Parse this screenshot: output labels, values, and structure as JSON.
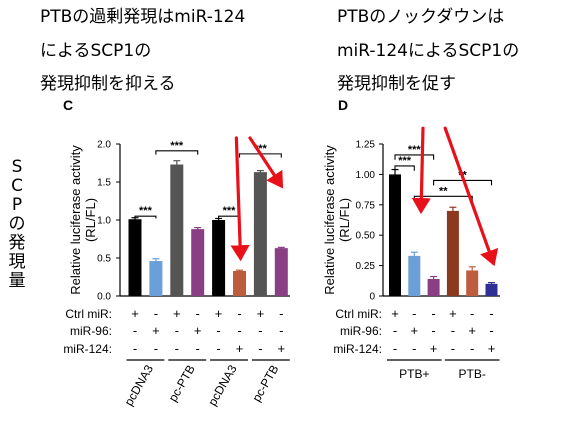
{
  "captions": {
    "left": [
      "PTBの過剰発現はmiR-124",
      "によるSCP1の",
      "発現抑制を抑える"
    ],
    "right": [
      "PTBのノックダウンは",
      "miR-124によるSCP1の",
      "発現抑制を促す"
    ],
    "side": "SCPの発現量"
  },
  "colors": {
    "black": "#000000",
    "blue": "#6a9fd8",
    "gray": "#555555",
    "purple": "#8a3f84",
    "brown": "#bd5d3e",
    "darkbrown": "#8b3a1f",
    "darkblue": "#2f2f95",
    "arrow": "#e8111a"
  },
  "chart_data": [
    {
      "panel": "C",
      "type": "bar",
      "ylabel": "Relative luciferase activity\n(RL/FL)",
      "ylim": [
        0,
        2.0
      ],
      "yticks": [
        "0.0",
        "0.5",
        "1.0",
        "1.5",
        "2.0"
      ],
      "row_labels": [
        "Ctrl miR:",
        "miR-96:",
        "miR-124:"
      ],
      "bars": [
        {
          "value": 1.01,
          "error": 0.02,
          "color": "black",
          "signs": [
            "+",
            "-",
            "-"
          ]
        },
        {
          "value": 0.46,
          "error": 0.03,
          "color": "blue",
          "signs": [
            "-",
            "+",
            "-"
          ]
        },
        {
          "value": 1.73,
          "error": 0.05,
          "color": "gray",
          "signs": [
            "+",
            "-",
            "-"
          ]
        },
        {
          "value": 0.88,
          "error": 0.02,
          "color": "purple",
          "signs": [
            "-",
            "+",
            "-"
          ]
        },
        {
          "value": 1.0,
          "error": 0.02,
          "color": "black",
          "signs": [
            "+",
            "-",
            "-"
          ]
        },
        {
          "value": 0.33,
          "error": 0.01,
          "color": "brown",
          "signs": [
            "-",
            "-",
            "+"
          ]
        },
        {
          "value": 1.63,
          "error": 0.02,
          "color": "gray",
          "signs": [
            "+",
            "-",
            "-"
          ]
        },
        {
          "value": 0.63,
          "error": 0.01,
          "color": "purple",
          "signs": [
            "-",
            "-",
            "+"
          ]
        }
      ],
      "groups": [
        {
          "label": "pcDNA3",
          "bars": [
            0,
            1
          ]
        },
        {
          "label": "pc-PTB",
          "bars": [
            2,
            3
          ]
        },
        {
          "label": "pcDNA3",
          "bars": [
            4,
            5
          ]
        },
        {
          "label": "pc-PTB",
          "bars": [
            6,
            7
          ]
        }
      ],
      "significance": [
        {
          "from": 0,
          "to": 1,
          "y": 1.05,
          "drop": 0.03,
          "label": "***"
        },
        {
          "from": 1,
          "to": 3,
          "y": 1.91,
          "drop": 0.05,
          "label": "***"
        },
        {
          "from": 4,
          "to": 5,
          "y": 1.05,
          "drop": 0.03,
          "label": "***"
        },
        {
          "from": 5,
          "to": 7,
          "y": 1.87,
          "drop": 0.05,
          "label": "***"
        }
      ],
      "arrows": [
        {
          "x1": 4.85,
          "y1": 2.08,
          "x2": 5.05,
          "y2": 0.5
        },
        {
          "x1": 5.5,
          "y1": 2.08,
          "x2": 7.0,
          "y2": 1.45
        }
      ]
    },
    {
      "panel": "D",
      "type": "bar",
      "ylabel": "Relative luciferase activity\n(RL/FL)",
      "ylim": [
        0,
        1.25
      ],
      "yticks": [
        "0",
        "0.25",
        "0.50",
        "0.75",
        "1.00",
        "1.25"
      ],
      "row_labels": [
        "Ctrl miR:",
        "miR-96:",
        "miR-124:"
      ],
      "bars": [
        {
          "value": 1.0,
          "error": 0.04,
          "color": "black",
          "signs": [
            "+",
            "-",
            "-"
          ]
        },
        {
          "value": 0.33,
          "error": 0.03,
          "color": "blue",
          "signs": [
            "-",
            "+",
            "-"
          ]
        },
        {
          "value": 0.14,
          "error": 0.02,
          "color": "purple",
          "signs": [
            "-",
            "-",
            "+"
          ]
        },
        {
          "value": 0.7,
          "error": 0.03,
          "color": "darkbrown",
          "signs": [
            "+",
            "-",
            "-"
          ]
        },
        {
          "value": 0.21,
          "error": 0.03,
          "color": "brown",
          "signs": [
            "-",
            "+",
            "-"
          ]
        },
        {
          "value": 0.1,
          "error": 0.01,
          "color": "darkblue",
          "signs": [
            "-",
            "-",
            "+"
          ]
        }
      ],
      "groups": [
        {
          "label": "PTB+",
          "bars": [
            0,
            2
          ]
        },
        {
          "label": "PTB-",
          "bars": [
            3,
            5
          ]
        }
      ],
      "significance": [
        {
          "from": 0,
          "to": 1,
          "y": 1.07,
          "drop": 0.04,
          "label": "***"
        },
        {
          "from": 0,
          "to": 2,
          "y": 1.16,
          "drop": 0.04,
          "label": "***"
        },
        {
          "from": 1,
          "to": 4,
          "y": 0.82,
          "drop": 0.04,
          "label": "**"
        },
        {
          "from": 2,
          "to": 5,
          "y": 0.95,
          "drop": 0.04,
          "label": "**"
        }
      ],
      "arrows": [
        {
          "x1": 1.45,
          "y1": 1.38,
          "x2": 1.35,
          "y2": 0.7
        },
        {
          "x1": 2.6,
          "y1": 1.38,
          "x2": 5.1,
          "y2": 0.27
        }
      ]
    }
  ]
}
